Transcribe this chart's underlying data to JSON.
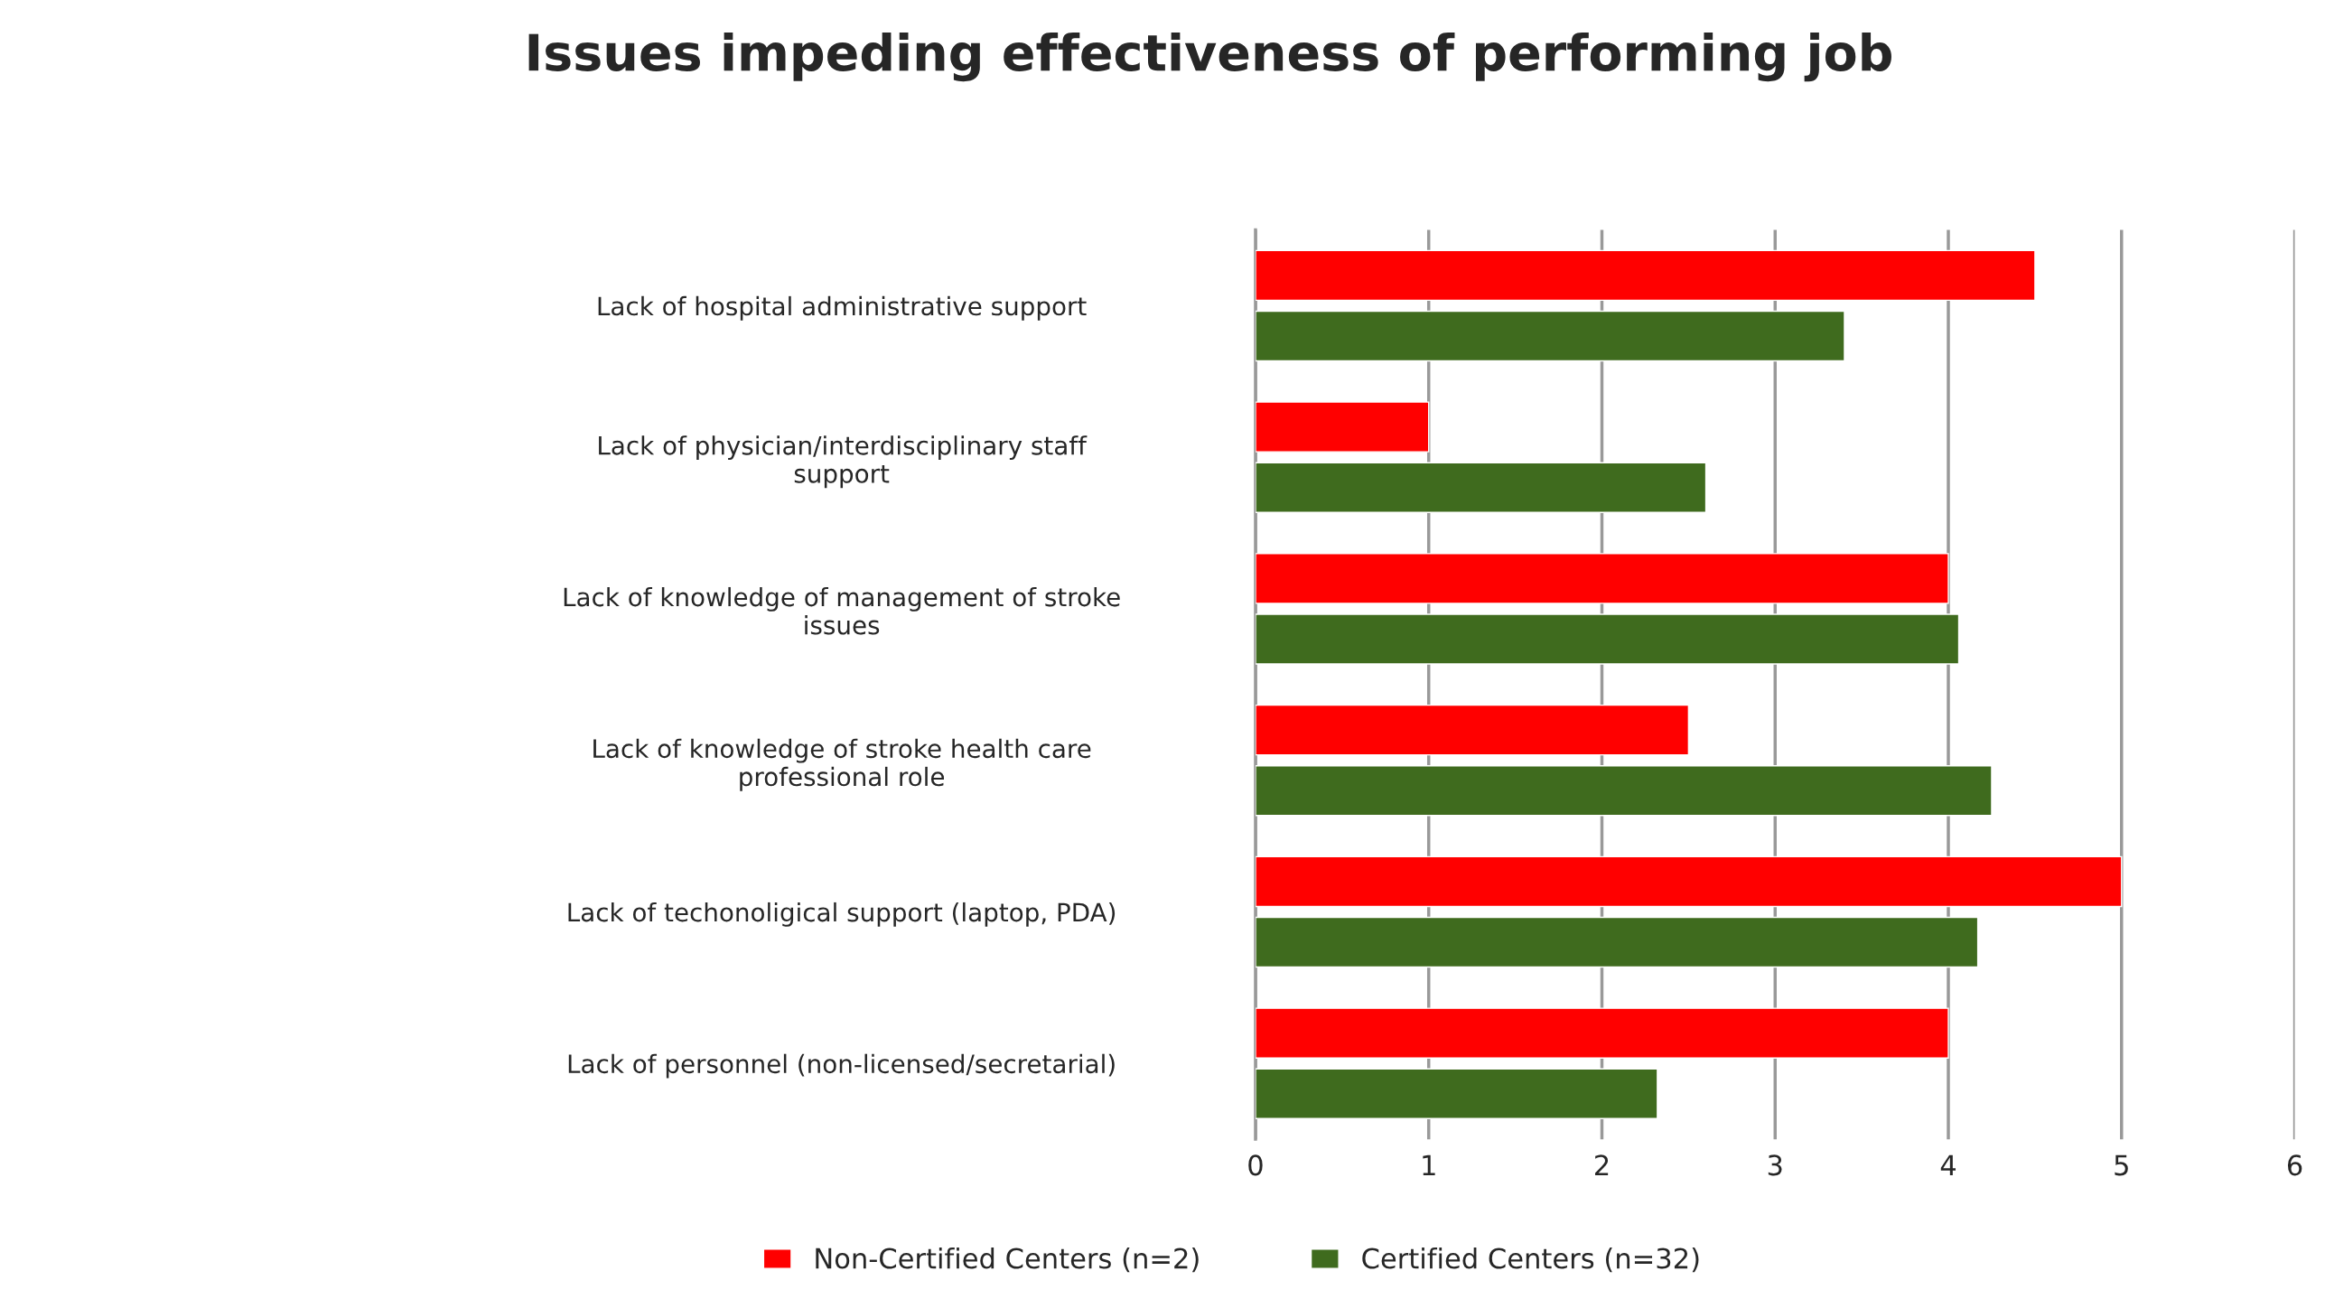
{
  "chart_data": {
    "type": "bar",
    "orientation": "horizontal",
    "title": "Issues impeding effectiveness of performing job",
    "categories": [
      "Lack of hospital administrative support",
      "Lack of physician/interdisciplinary staff support",
      "Lack of knowledge of management of stroke issues",
      "Lack of knowledge of stroke health care professional role",
      "Lack of techonoligical support (laptop, PDA)",
      "Lack of personnel (non-licensed/secretarial)"
    ],
    "series": [
      {
        "name": "Non-Certified Centers (n=2)",
        "color": "#ff0000",
        "values": [
          4.5,
          1.0,
          4.0,
          2.5,
          5.0,
          4.0
        ]
      },
      {
        "name": "Certified Centers (n=32)",
        "color": "#3f6b1e",
        "values": [
          3.4,
          2.6,
          4.06,
          4.25,
          4.17,
          2.32
        ]
      }
    ],
    "xlim": [
      0,
      6
    ],
    "xticks": [
      0,
      1,
      2,
      3,
      4,
      5,
      6
    ],
    "grid": "x",
    "legend": "bottom"
  }
}
